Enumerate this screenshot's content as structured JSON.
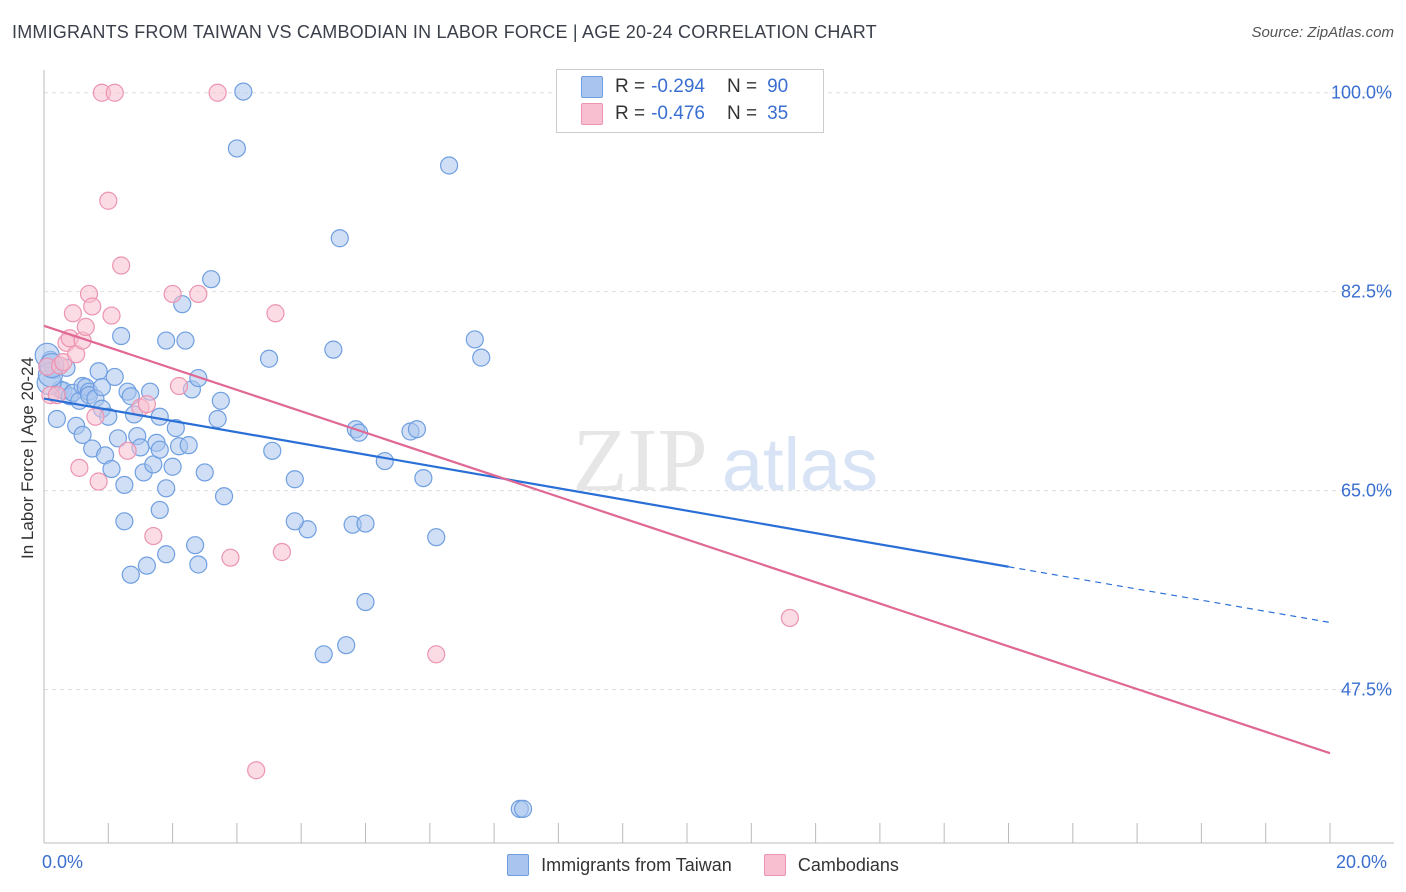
{
  "title": "IMMIGRANTS FROM TAIWAN VS CAMBODIAN IN LABOR FORCE | AGE 20-24 CORRELATION CHART",
  "source": "Source: ZipAtlas.com",
  "colors": {
    "blue_fill": "#a9c4ef",
    "blue_stroke": "#6f9fe0",
    "blue_line": "#2a6fd6",
    "pink_fill": "#f7bfd0",
    "pink_stroke": "#ec94b2",
    "pink_line": "#e06894",
    "axis_text": "#3a6fd0",
    "grid": "#dddddd"
  },
  "legend": {
    "rows": [
      {
        "r_label": "R =",
        "r_value": "-0.294",
        "n_label": "N =",
        "n_value": "90"
      },
      {
        "r_label": "R =",
        "r_value": "-0.476",
        "n_label": "N =",
        "n_value": "35"
      }
    ]
  },
  "watermark": {
    "zip": "ZIP",
    "atlas": "atlas"
  },
  "chart_data": {
    "type": "scatter",
    "title": "IMMIGRANTS FROM TAIWAN VS CAMBODIAN IN LABOR FORCE | AGE 20-24 CORRELATION CHART",
    "xlabel": "",
    "ylabel": "In Labor Force | Age 20-24",
    "xlim": [
      0,
      20
    ],
    "ylim": [
      34,
      102
    ],
    "x_tick_labels": [
      "0.0%",
      "20.0%"
    ],
    "y_ticks": [
      100.0,
      82.5,
      65.0,
      47.5
    ],
    "y_tick_labels": [
      "100.0%",
      "82.5%",
      "65.0%",
      "47.5%"
    ],
    "grid": true,
    "legend_position": "top-center",
    "series": [
      {
        "name": "Immigrants from Taiwan",
        "color": "#a9c4ef",
        "trend": {
          "x": [
            0,
            15
          ],
          "y": [
            73.1,
            58.3
          ],
          "dashed_to": [
            20,
            53.4
          ]
        },
        "points": [
          [
            0.1,
            76.5
          ],
          [
            0.15,
            75.6
          ],
          [
            0.2,
            71.3
          ],
          [
            0.25,
            73.9
          ],
          [
            0.3,
            73.8
          ],
          [
            0.35,
            75.8
          ],
          [
            0.4,
            73.3
          ],
          [
            0.45,
            73.6
          ],
          [
            0.5,
            70.7
          ],
          [
            0.55,
            72.9
          ],
          [
            0.6,
            74.2
          ],
          [
            0.6,
            69.9
          ],
          [
            0.65,
            74.1
          ],
          [
            0.7,
            73.7
          ],
          [
            0.7,
            73.4
          ],
          [
            0.75,
            68.7
          ],
          [
            0.8,
            73.1
          ],
          [
            0.85,
            75.5
          ],
          [
            0.9,
            74.1
          ],
          [
            0.9,
            72.2
          ],
          [
            0.95,
            68.1
          ],
          [
            1.0,
            71.5
          ],
          [
            1.05,
            66.9
          ],
          [
            1.1,
            75.0
          ],
          [
            1.15,
            69.6
          ],
          [
            1.2,
            78.6
          ],
          [
            1.25,
            65.5
          ],
          [
            1.25,
            62.3
          ],
          [
            1.3,
            73.7
          ],
          [
            1.35,
            57.6
          ],
          [
            1.35,
            73.3
          ],
          [
            1.4,
            71.7
          ],
          [
            1.45,
            69.8
          ],
          [
            1.5,
            68.8
          ],
          [
            1.55,
            66.6
          ],
          [
            1.6,
            58.4
          ],
          [
            1.65,
            73.7
          ],
          [
            1.7,
            67.3
          ],
          [
            1.75,
            69.2
          ],
          [
            1.8,
            68.6
          ],
          [
            1.8,
            63.3
          ],
          [
            1.8,
            71.5
          ],
          [
            1.9,
            65.2
          ],
          [
            1.9,
            78.2
          ],
          [
            1.9,
            59.4
          ],
          [
            2.0,
            67.1
          ],
          [
            2.05,
            70.5
          ],
          [
            2.1,
            68.9
          ],
          [
            2.15,
            81.4
          ],
          [
            2.2,
            78.2
          ],
          [
            2.25,
            69.0
          ],
          [
            2.3,
            73.9
          ],
          [
            2.35,
            60.2
          ],
          [
            2.4,
            58.5
          ],
          [
            2.4,
            74.9
          ],
          [
            2.5,
            66.6
          ],
          [
            2.6,
            83.6
          ],
          [
            2.7,
            71.3
          ],
          [
            2.75,
            72.9
          ],
          [
            2.8,
            64.5
          ],
          [
            3.0,
            95.1
          ],
          [
            3.1,
            100.1
          ],
          [
            3.5,
            76.6
          ],
          [
            3.55,
            68.5
          ],
          [
            3.9,
            66.0
          ],
          [
            4.1,
            61.6
          ],
          [
            4.5,
            77.4
          ],
          [
            4.6,
            87.2
          ],
          [
            4.8,
            62.0
          ],
          [
            4.85,
            70.4
          ],
          [
            4.9,
            70.1
          ],
          [
            5.0,
            62.1
          ],
          [
            5.0,
            55.2
          ],
          [
            5.3,
            67.6
          ],
          [
            5.7,
            70.2
          ],
          [
            5.8,
            70.4
          ],
          [
            5.9,
            66.1
          ],
          [
            6.1,
            60.9
          ],
          [
            6.3,
            93.6
          ],
          [
            6.7,
            78.3
          ],
          [
            6.8,
            76.7
          ],
          [
            7.4,
            37.0
          ],
          [
            7.45,
            37.0
          ],
          [
            4.35,
            50.6
          ],
          [
            4.7,
            51.4
          ],
          [
            3.9,
            62.3
          ],
          [
            0.05,
            76.9
          ],
          [
            0.08,
            74.5
          ],
          [
            0.1,
            75.2
          ],
          [
            0.12,
            76.0
          ]
        ]
      },
      {
        "name": "Cambodians",
        "color": "#f7bfd0",
        "trend": {
          "x": [
            0,
            20
          ],
          "y": [
            79.5,
            41.9
          ]
        },
        "points": [
          [
            0.05,
            75.9
          ],
          [
            0.1,
            73.4
          ],
          [
            0.2,
            73.4
          ],
          [
            0.25,
            76.0
          ],
          [
            0.3,
            76.3
          ],
          [
            0.35,
            78.0
          ],
          [
            0.4,
            78.4
          ],
          [
            0.45,
            80.6
          ],
          [
            0.5,
            77.0
          ],
          [
            0.55,
            67.0
          ],
          [
            0.6,
            78.2
          ],
          [
            0.65,
            79.4
          ],
          [
            0.7,
            82.3
          ],
          [
            0.75,
            81.2
          ],
          [
            0.8,
            71.5
          ],
          [
            0.85,
            65.8
          ],
          [
            0.9,
            100.0
          ],
          [
            1.0,
            90.5
          ],
          [
            1.05,
            80.4
          ],
          [
            1.1,
            100.0
          ],
          [
            1.2,
            84.8
          ],
          [
            1.5,
            72.3
          ],
          [
            1.6,
            72.6
          ],
          [
            1.7,
            61.0
          ],
          [
            2.0,
            82.3
          ],
          [
            2.1,
            74.2
          ],
          [
            2.4,
            82.3
          ],
          [
            2.7,
            100.0
          ],
          [
            2.9,
            59.1
          ],
          [
            3.3,
            40.4
          ],
          [
            3.6,
            80.6
          ],
          [
            3.7,
            59.6
          ],
          [
            6.1,
            50.6
          ],
          [
            11.6,
            53.8
          ],
          [
            1.3,
            68.5
          ]
        ]
      }
    ]
  },
  "bottom_legend": [
    "Immigrants from Taiwan",
    "Cambodians"
  ],
  "x_axis": {
    "left_label": "0.0%",
    "right_label": "20.0%"
  }
}
